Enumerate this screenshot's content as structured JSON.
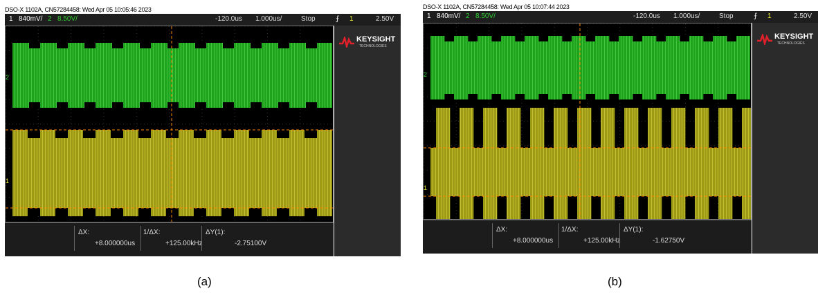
{
  "panels": [
    {
      "header": "DSO-X 1102A, CN57284458: Wed Apr 05 10:05:46 2023",
      "status": {
        "ch1": "1",
        "ch1_scale": "840mV/",
        "ch2": "2",
        "ch2_scale": "8.50V/",
        "delay": "-120.0us",
        "timebase": "1.000us/",
        "run_state": "Stop",
        "trig_source": "1",
        "trig_level": "2.50V"
      },
      "logo": {
        "brand": "KEYSIGHT",
        "sub": "TECHNOLOGIES"
      },
      "channel_markers": [
        "2",
        "1"
      ],
      "measurements": {
        "dx_label": "ΔX:",
        "dx": "+8.000000us",
        "inv_label": "1/ΔX:",
        "inv": "+125.00kHz",
        "dy_label": "ΔY(1):",
        "dy": "-2.75100V"
      },
      "caption": "(a)"
    },
    {
      "header": "DSO-X 1102A, CN57284458: Wed Apr 05 10:07:44 2023",
      "status": {
        "ch1": "1",
        "ch1_scale": "840mV/",
        "ch2": "2",
        "ch2_scale": "8.50V/",
        "delay": "-120.0us",
        "timebase": "1.000us/",
        "run_state": "Stop",
        "trig_source": "1",
        "trig_level": "2.50V"
      },
      "logo": {
        "brand": "KEYSIGHT",
        "sub": "TECHNOLOGIES"
      },
      "channel_markers": [
        "2",
        "1"
      ],
      "measurements": {
        "dx_label": "ΔX:",
        "dx": "+8.000000us",
        "inv_label": "1/ΔX:",
        "inv": "+125.00kHz",
        "dy_label": "ΔY(1):",
        "dy": "-1.62750V"
      },
      "caption": "(b)"
    }
  ]
}
